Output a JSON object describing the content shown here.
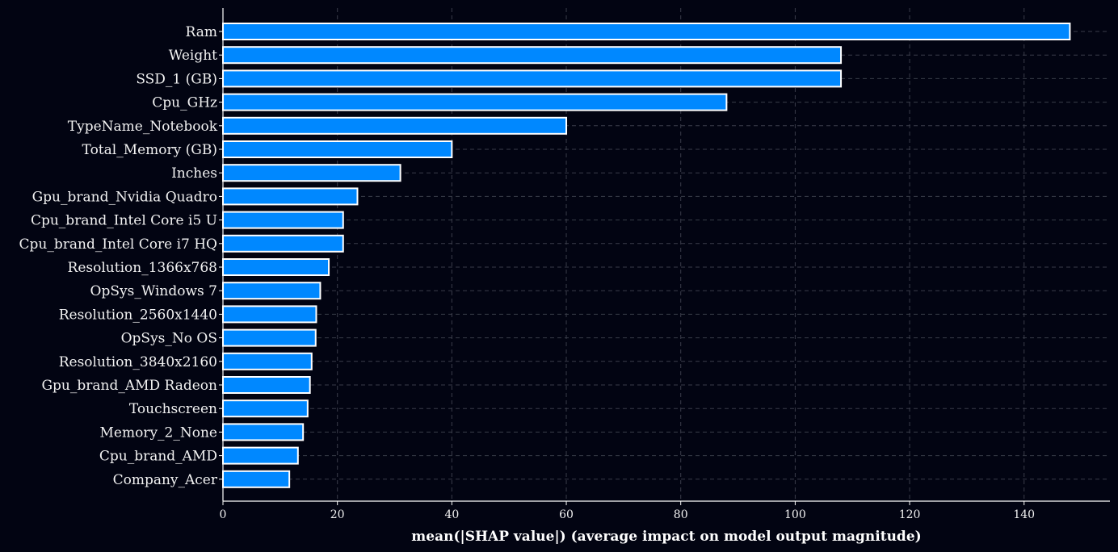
{
  "chart_data": {
    "type": "bar",
    "orientation": "horizontal",
    "title": "",
    "xlabel": "mean(|SHAP value|) (average impact on model output magnitude)",
    "ylabel": "",
    "xlim": [
      0,
      155
    ],
    "xticks": [
      0,
      20,
      40,
      60,
      80,
      100,
      120,
      140
    ],
    "grid": true,
    "legend": "none",
    "colors": {
      "background": "#020412",
      "bar": "#0088ff",
      "bar_edge": "#ffffff",
      "grid": "#3a3d4a",
      "axis": "#ffffff",
      "text": "#f2f2f2"
    },
    "categories": [
      "Ram",
      "Weight",
      "SSD_1 (GB)",
      "Cpu_GHz",
      "TypeName_Notebook",
      "Total_Memory (GB)",
      "Inches",
      "Gpu_brand_Nvidia Quadro",
      "Cpu_brand_Intel Core i5 U",
      "Cpu_brand_Intel Core i7 HQ",
      "Resolution_1366x768",
      "OpSys_Windows 7",
      "Resolution_2560x1440",
      "OpSys_No OS",
      "Resolution_3840x2160",
      "Gpu_brand_AMD Radeon",
      "Touchscreen",
      "Memory_2_None",
      "Cpu_brand_AMD",
      "Company_Acer"
    ],
    "values": [
      148,
      108,
      108,
      88,
      60,
      40,
      31,
      23.5,
      21,
      21,
      18.5,
      17,
      16.3,
      16.2,
      15.5,
      15.2,
      14.8,
      14,
      13.1,
      11.6
    ]
  }
}
